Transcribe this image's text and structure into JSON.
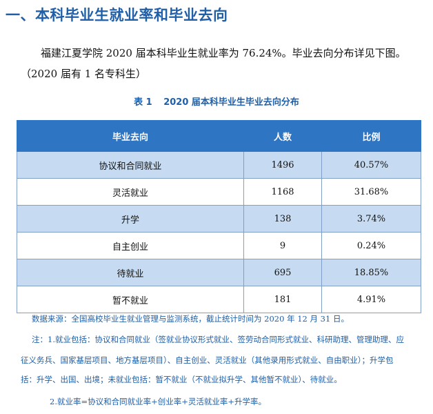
{
  "section_heading": "一、本科毕业生就业率和毕业去向",
  "intro": {
    "line1": "福建江夏学院  2020  届本科毕业生就业率为  76.24%。毕业去向分布详见下图。",
    "line2": "（2020 届有 1 名专科生）"
  },
  "table_caption": {
    "label": "表  1",
    "title": "2020 届本科毕业生毕业去向分布"
  },
  "table": {
    "headers": [
      "毕业去向",
      "人数",
      "比例"
    ],
    "rows": [
      {
        "destination": "协议和合同就业",
        "count": "1496",
        "ratio": "40.57%"
      },
      {
        "destination": "灵活就业",
        "count": "1168",
        "ratio": "31.68%"
      },
      {
        "destination": "升学",
        "count": "138",
        "ratio": "3.74%"
      },
      {
        "destination": "自主创业",
        "count": "9",
        "ratio": "0.24%"
      },
      {
        "destination": "待就业",
        "count": "695",
        "ratio": "18.85%"
      },
      {
        "destination": "暂不就业",
        "count": "181",
        "ratio": "4.91%"
      }
    ]
  },
  "notes": {
    "source": "数据来源：全国高校毕业生就业管理与监测系统，截止统计时间为 2020 年 12 月 31 日。",
    "note1_a": "注：1.就业包括：协议和合同就业（签就业协议形式就业、签劳动合同形式就业、科研助理、管理助理、应",
    "note1_b": "征义务兵、国家基层项目、地方基层项目）、自主创业、灵活就业（其他录用形式就业、自由职业）；升学包",
    "note1_c": "括：升学、出国、出境；未就业包括：暂不就业（不就业拟升学、其他暂不就业）、待就业。",
    "note2": "2.就业率=协议和合同就业率+创业率+灵活就业率+升学率。"
  },
  "colors": {
    "heading": "#1f5fa8",
    "table_header_bg": "#2e75c4",
    "row_shade": "#c6dbf1"
  }
}
